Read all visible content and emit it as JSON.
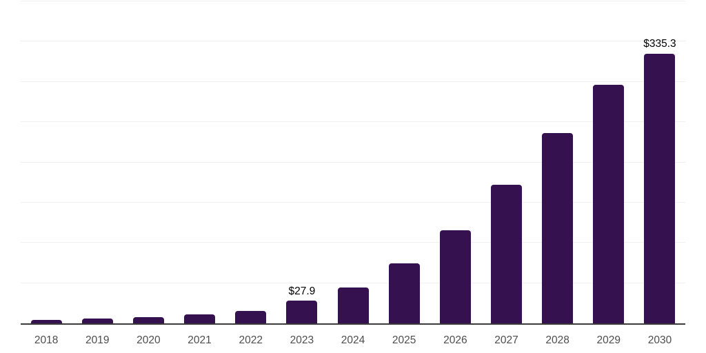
{
  "colors": {
    "background": "#ffffff",
    "bar": "#351150",
    "axis_line": "#3b3b3b",
    "gridline": "#f0f0f0",
    "tick_label": "#4d4d4d",
    "data_label": "#000000"
  },
  "chart_data": {
    "type": "bar",
    "categories": [
      "2018",
      "2019",
      "2020",
      "2021",
      "2022",
      "2023",
      "2024",
      "2025",
      "2026",
      "2027",
      "2028",
      "2029",
      "2030"
    ],
    "values": [
      4.3,
      6.0,
      7.3,
      10.8,
      15.3,
      27.9,
      44.5,
      74.4,
      116.0,
      172.3,
      236.6,
      296.3,
      335.3
    ],
    "data_labels": {
      "2023": "$27.9",
      "2030": "$335.3"
    },
    "xlabel": "",
    "ylabel": "",
    "ylim": [
      0,
      400
    ],
    "grid_step": 50,
    "grid": true,
    "legend": false,
    "y_axis_ticks_visible": false
  }
}
